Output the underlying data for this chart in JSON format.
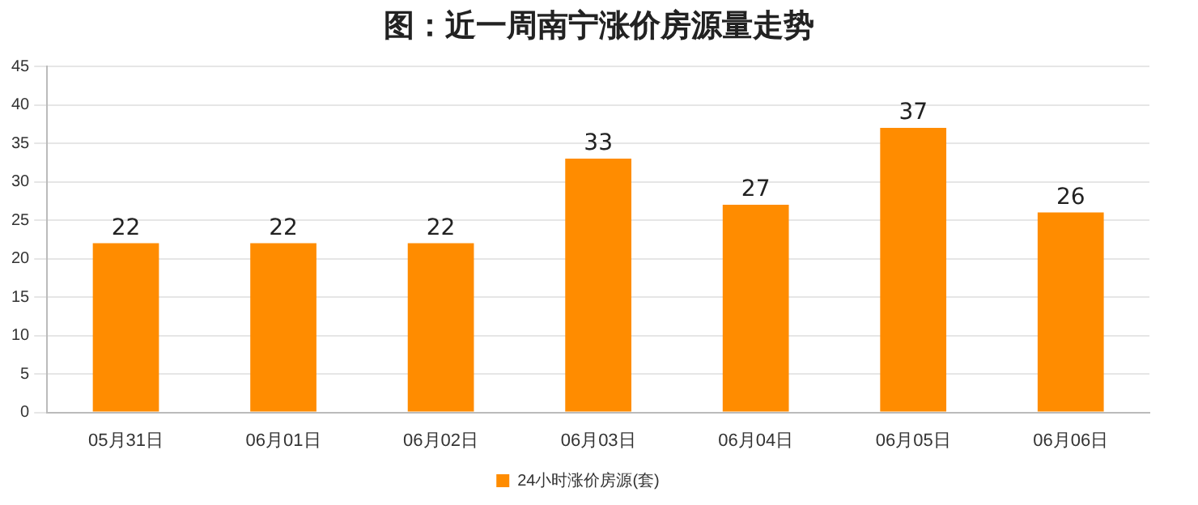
{
  "chart_data": {
    "type": "bar",
    "title": "图：近一周南宁涨价房源量走势",
    "categories": [
      "05月31日",
      "06月01日",
      "06月02日",
      "06月03日",
      "06月04日",
      "06月05日",
      "06月06日"
    ],
    "series": [
      {
        "name": "24小时涨价房源(套)",
        "color": "#ff8c00",
        "values": [
          22,
          22,
          22,
          33,
          27,
          37,
          26
        ]
      }
    ],
    "ylim": [
      0,
      45
    ],
    "yticks": [
      0,
      5,
      10,
      15,
      20,
      25,
      30,
      35,
      40,
      45
    ],
    "grid": "y",
    "legend": "bottom",
    "data_labels": true
  }
}
